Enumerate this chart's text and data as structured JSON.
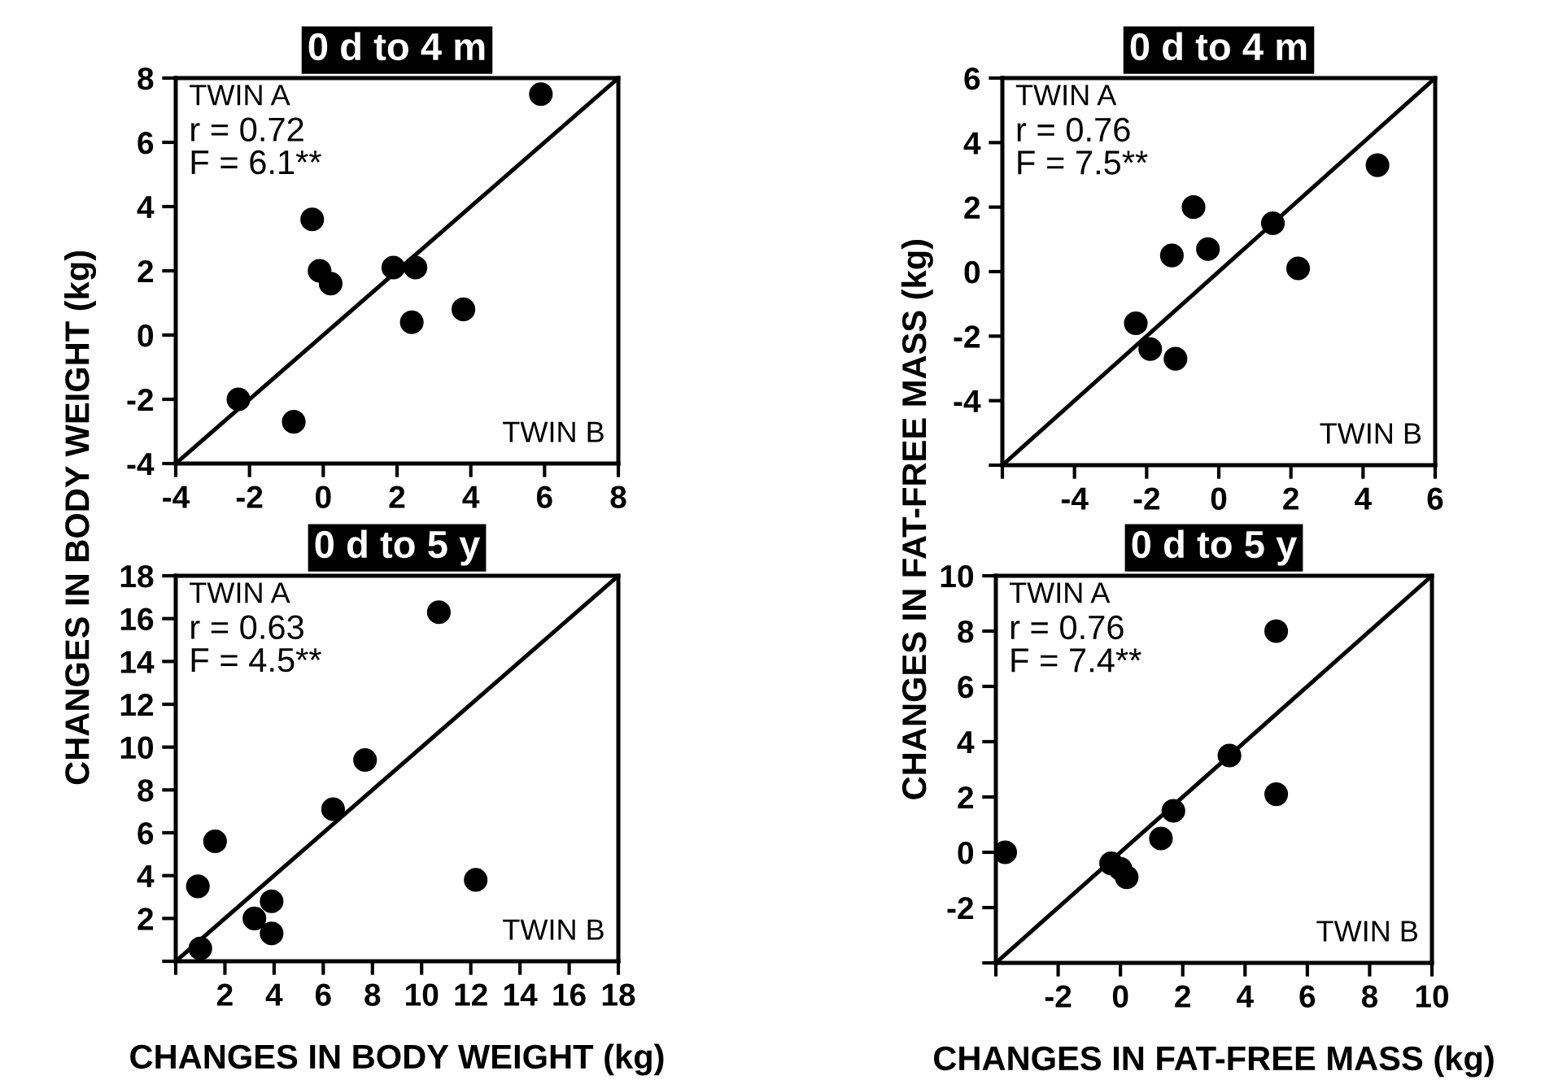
{
  "chart_data": [
    {
      "type": "scatter",
      "title": "0 d to 4 m",
      "ylabel": "CHANGES IN BODY WEIGHT (kg)",
      "annotations": [
        "TWIN A",
        "r = 0.72",
        "F = 6.1**",
        "TWIN B"
      ],
      "xlim": [
        -4,
        8
      ],
      "ylim": [
        -4,
        8
      ],
      "xticks": [
        -4,
        -2,
        0,
        2,
        4,
        6,
        8
      ],
      "yticks": [
        -4,
        -2,
        0,
        2,
        4,
        6,
        8
      ],
      "grid": false,
      "series": [
        {
          "marker": "circle",
          "color": "#000000",
          "x": [
            5.9,
            -0.3,
            -0.1,
            0.2,
            1.9,
            2.5,
            2.4,
            3.8,
            -2.3,
            -0.8
          ],
          "values": [
            7.5,
            3.6,
            2.0,
            1.6,
            2.1,
            2.1,
            0.4,
            0.8,
            -2.0,
            -2.7
          ]
        },
        {
          "type": "line",
          "color": "#000000",
          "x": [
            -4,
            8
          ],
          "values": [
            -4,
            8
          ]
        }
      ]
    },
    {
      "type": "scatter",
      "title": "0 d to 4 m",
      "ylabel": "CHANGES IN FAT-FREE MASS (kg)",
      "annotations": [
        "TWIN A",
        "r = 0.76",
        "F = 7.5**",
        "TWIN B"
      ],
      "xlim": [
        -6,
        6
      ],
      "ylim": [
        -6,
        6
      ],
      "xticks": [
        {
          "value": -6,
          "label": null
        },
        -4,
        -2,
        0,
        2,
        4,
        6
      ],
      "yticks": [
        {
          "value": -6,
          "label": null
        },
        -4,
        -2,
        0,
        2,
        4,
        6
      ],
      "grid": false,
      "series": [
        {
          "marker": "circle",
          "color": "#000000",
          "x": [
            4.4,
            -0.7,
            -1.3,
            -0.3,
            1.5,
            2.2,
            -2.3,
            -1.9,
            -1.2
          ],
          "values": [
            3.3,
            2.0,
            0.5,
            0.7,
            1.5,
            0.1,
            -1.6,
            -2.4,
            -2.7
          ]
        },
        {
          "type": "line",
          "color": "#000000",
          "x": [
            -6,
            6
          ],
          "values": [
            -6,
            6
          ]
        }
      ]
    },
    {
      "type": "scatter",
      "title": "0 d to 5 y",
      "xlabel": "CHANGES IN BODY WEIGHT (kg)",
      "annotations": [
        "TWIN A",
        "r = 0.63",
        "F = 4.5**",
        "TWIN B"
      ],
      "xlim": [
        0,
        18
      ],
      "ylim": [
        0,
        18
      ],
      "xticks": [
        {
          "value": 0,
          "label": null
        },
        2,
        4,
        6,
        8,
        10,
        12,
        14,
        16,
        18
      ],
      "yticks": [
        {
          "value": 0,
          "label": null
        },
        2,
        4,
        6,
        8,
        10,
        12,
        14,
        16,
        18
      ],
      "grid": false,
      "series": [
        {
          "marker": "circle",
          "color": "#000000",
          "x": [
            10.7,
            7.7,
            6.4,
            1.6,
            0.9,
            12.2,
            3.9,
            3.2,
            3.9,
            1.0
          ],
          "values": [
            16.3,
            9.4,
            7.1,
            5.6,
            3.5,
            3.8,
            2.8,
            2.0,
            1.3,
            0.6
          ]
        },
        {
          "type": "line",
          "color": "#000000",
          "x": [
            0,
            18
          ],
          "values": [
            0,
            18
          ]
        }
      ]
    },
    {
      "type": "scatter",
      "title": "0 d to 5 y",
      "xlabel": "CHANGES IN FAT-FREE MASS (kg)",
      "annotations": [
        "TWIN A",
        "r = 0.76",
        "F = 7.4**",
        "TWIN B"
      ],
      "xlim": [
        -4,
        10
      ],
      "ylim": [
        -4,
        10
      ],
      "xticks": [
        {
          "value": -4,
          "label": null
        },
        -2,
        0,
        2,
        4,
        6,
        8,
        10
      ],
      "yticks": [
        {
          "value": -4,
          "label": null
        },
        -2,
        0,
        2,
        4,
        6,
        8,
        10
      ],
      "grid": false,
      "series": [
        {
          "marker": "circle",
          "color": "#000000",
          "x": [
            5.0,
            3.5,
            5.0,
            1.7,
            1.3,
            -3.7,
            -0.3,
            0.0,
            0.2
          ],
          "values": [
            8.0,
            3.5,
            2.1,
            1.5,
            0.5,
            0.0,
            -0.4,
            -0.6,
            -0.9
          ]
        },
        {
          "type": "line",
          "color": "#000000",
          "x": [
            -4,
            10
          ],
          "values": [
            -4,
            10
          ]
        }
      ]
    }
  ]
}
